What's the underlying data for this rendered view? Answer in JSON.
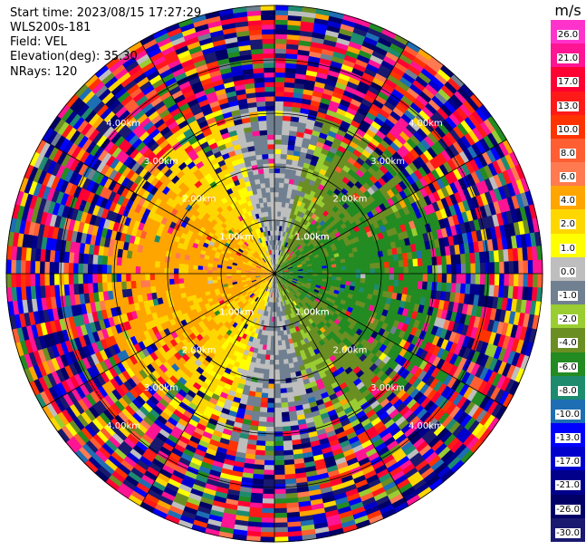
{
  "header": {
    "start_time": "Start time: 2023/08/15 17:27:29",
    "instrument": "WLS200s-181",
    "field": "Field: VEL",
    "elevation": "Elevation(deg): 35.30",
    "nrays": "NRays: 120"
  },
  "colorbar": {
    "unit": "m/s",
    "levels": [
      "26.0",
      "21.0",
      "17.0",
      "13.0",
      "10.0",
      "8.0",
      "6.0",
      "4.0",
      "2.0",
      "1.0",
      "0.0",
      "-1.0",
      "-2.0",
      "-4.0",
      "-6.0",
      "-8.0",
      "-10.0",
      "-13.0",
      "-17.0",
      "-21.0",
      "-26.0",
      "-30.0"
    ],
    "colors": [
      "#ff33cc",
      "#ff1493",
      "#ff0033",
      "#ff1a1a",
      "#ff3300",
      "#ff5e33",
      "#ff7a50",
      "#ffa500",
      "#ffd700",
      "#ffff00",
      "#bebebe",
      "#708090",
      "#9acd32",
      "#6b8e23",
      "#228b22",
      "#1e8b6f",
      "#1e6eb4",
      "#0000ff",
      "#0000cd",
      "#00008b",
      "#000066",
      "#191970"
    ]
  },
  "chart_data": {
    "type": "heatmap",
    "title": "",
    "field": "VEL",
    "elevation_deg": 35.3,
    "nrays": 120,
    "range_rings_km": [
      1.0,
      1.0,
      2.0,
      3.0,
      4.0
    ],
    "ring_labels": [
      "1.00km",
      "1.00km",
      "2.00km",
      "3.00km",
      "4.00km"
    ],
    "value_range": [
      -30.0,
      26.0
    ],
    "unit": "m/s",
    "description_of_pattern": {
      "near_range_west": "positive 1.0 to 6.0 m/s (yellow/orange)",
      "near_range_east": "negative -1.0 to -6.0 m/s (green)",
      "near_range_north_south": "about 0.0 m/s (grey)",
      "far_range": "noisy, full -30.0 to 26.0 m/s"
    }
  }
}
